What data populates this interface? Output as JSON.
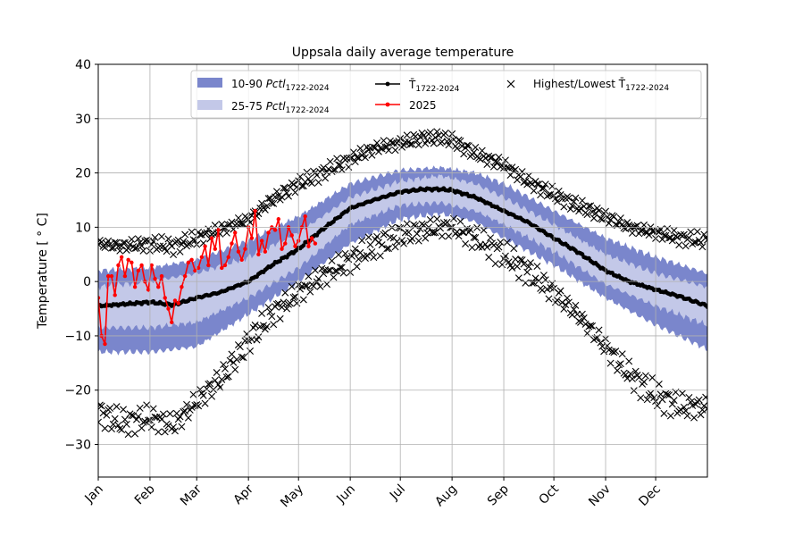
{
  "chart_data": {
    "type": "line",
    "title": "Uppsala daily average temperature",
    "ylabel": "Temperature [$^\\circ$C]",
    "ylabel_display": "Temperature [ ° C]",
    "xlabel": "",
    "xlim": [
      1,
      366
    ],
    "ylim": [
      -36,
      40
    ],
    "yticks": [
      -30,
      -20,
      -10,
      0,
      10,
      20,
      30,
      40
    ],
    "xticks": [
      {
        "label": "Jan",
        "day": 1
      },
      {
        "label": "Feb",
        "day": 32
      },
      {
        "label": "Mar",
        "day": 60
      },
      {
        "label": "Apr",
        "day": 91
      },
      {
        "label": "May",
        "day": 121
      },
      {
        "label": "Jun",
        "day": 152
      },
      {
        "label": "Jul",
        "day": 182
      },
      {
        "label": "Aug",
        "day": 213
      },
      {
        "label": "Sep",
        "day": 244
      },
      {
        "label": "Oct",
        "day": 274
      },
      {
        "label": "Nov",
        "day": 305
      },
      {
        "label": "Dec",
        "day": 335
      }
    ],
    "grid": true,
    "legend_placement": "top-right",
    "legend": [
      {
        "key": "p1090",
        "label": "10-90",
        "sub": "1722-2024",
        "math": "Pctl",
        "color": "#7a86cc",
        "kind": "patch"
      },
      {
        "key": "p2575",
        "label": "25-75",
        "sub": "1722-2024",
        "math": "Pctl",
        "color": "#c3c8e8",
        "kind": "patch"
      },
      {
        "key": "mean",
        "label": "T̄",
        "sub": "1722-2024",
        "color": "#000000",
        "kind": "line-dot"
      },
      {
        "key": "y2025",
        "label": "2025",
        "color": "#ff0000",
        "kind": "line-dot"
      },
      {
        "key": "extremes",
        "label": "Highest/Lowest T̄",
        "sub": "1722-2024",
        "color": "#000000",
        "kind": "x-marker"
      }
    ],
    "series": {
      "mean": {
        "x": [
          1,
          15,
          32,
          46,
          60,
          74,
          91,
          105,
          121,
          135,
          152,
          166,
          182,
          196,
          206,
          213,
          227,
          244,
          258,
          274,
          288,
          305,
          319,
          335,
          350,
          366
        ],
        "y": [
          -4.5,
          -4.2,
          -3.8,
          -4.3,
          -3.0,
          -2.0,
          0.0,
          3.0,
          6.0,
          9.5,
          13.5,
          15.0,
          16.5,
          17.0,
          17.0,
          16.8,
          15.5,
          13.0,
          11.0,
          8.0,
          5.5,
          2.0,
          0.0,
          -1.5,
          -2.8,
          -4.5
        ]
      },
      "p25": {
        "x": [
          1,
          32,
          60,
          91,
          121,
          152,
          182,
          206,
          227,
          244,
          274,
          305,
          335,
          366
        ],
        "y": [
          -8.5,
          -8.5,
          -7.5,
          -3.0,
          2.5,
          10.5,
          14.0,
          14.5,
          13.0,
          10.5,
          5.5,
          -0.5,
          -4.5,
          -8.0
        ]
      },
      "p75": {
        "x": [
          1,
          32,
          60,
          91,
          121,
          152,
          182,
          206,
          227,
          244,
          274,
          305,
          335,
          366
        ],
        "y": [
          -1.0,
          0.0,
          1.5,
          4.5,
          9.0,
          15.5,
          18.5,
          19.5,
          18.0,
          15.5,
          10.5,
          5.0,
          1.5,
          -1.0
        ]
      },
      "p10": {
        "x": [
          1,
          32,
          60,
          91,
          121,
          152,
          182,
          206,
          227,
          244,
          274,
          305,
          335,
          366
        ],
        "y": [
          -13.0,
          -13.0,
          -12.0,
          -6.0,
          0.0,
          7.0,
          11.5,
          12.5,
          11.0,
          8.0,
          3.0,
          -3.0,
          -8.0,
          -12.5
        ]
      },
      "p90": {
        "x": [
          1,
          32,
          60,
          91,
          121,
          152,
          182,
          206,
          227,
          244,
          274,
          305,
          335,
          366
        ],
        "y": [
          2.0,
          2.5,
          4.0,
          7.5,
          12.0,
          18.0,
          20.5,
          21.0,
          20.0,
          18.0,
          13.0,
          8.0,
          4.5,
          1.5
        ]
      },
      "highest": {
        "x": [
          1,
          15,
          32,
          46,
          60,
          74,
          91,
          105,
          121,
          135,
          152,
          166,
          182,
          196,
          206,
          213,
          227,
          244,
          258,
          274,
          288,
          305,
          319,
          335,
          350,
          366
        ],
        "y": [
          7.0,
          6.5,
          7.0,
          6.5,
          8.0,
          9.5,
          11.5,
          15.0,
          18.0,
          20.0,
          22.5,
          24.5,
          25.5,
          26.5,
          26.5,
          26.0,
          23.5,
          21.5,
          18.5,
          16.0,
          14.0,
          12.0,
          10.0,
          9.0,
          8.0,
          7.5
        ]
      },
      "lowest": {
        "x": [
          1,
          15,
          32,
          46,
          60,
          74,
          91,
          105,
          121,
          135,
          152,
          166,
          182,
          196,
          206,
          213,
          227,
          244,
          258,
          274,
          288,
          305,
          319,
          335,
          350,
          366
        ],
        "y": [
          -24.0,
          -26.0,
          -25.0,
          -26.5,
          -22.0,
          -18.0,
          -11.0,
          -6.0,
          -2.0,
          1.0,
          4.0,
          6.5,
          8.5,
          9.5,
          10.0,
          10.0,
          8.0,
          5.0,
          2.0,
          -2.0,
          -6.0,
          -12.0,
          -17.0,
          -21.0,
          -23.0,
          -23.0
        ]
      },
      "y2025": {
        "x": [
          1,
          3,
          5,
          7,
          9,
          11,
          13,
          15,
          17,
          19,
          21,
          23,
          25,
          27,
          29,
          31,
          33,
          35,
          37,
          39,
          41,
          43,
          45,
          47,
          49,
          51,
          53,
          55,
          57,
          59,
          61,
          63,
          65,
          67,
          69,
          71,
          73,
          75,
          77,
          79,
          81,
          83,
          85,
          87,
          89,
          91,
          93,
          95,
          97,
          99,
          101,
          103,
          105,
          107,
          109,
          111,
          113,
          115,
          117,
          119,
          121,
          123,
          125,
          127,
          129,
          131
        ],
        "y": [
          -3.0,
          -10.0,
          -11.5,
          1.0,
          1.0,
          -2.5,
          3.0,
          4.5,
          1.0,
          4.0,
          3.5,
          -1.0,
          2.0,
          3.0,
          0.0,
          -1.5,
          3.0,
          0.5,
          -1.0,
          1.0,
          -3.0,
          -5.0,
          -7.5,
          -3.5,
          -4.0,
          -1.0,
          1.0,
          3.5,
          4.0,
          2.0,
          2.5,
          4.5,
          6.5,
          3.0,
          8.0,
          6.0,
          9.5,
          2.5,
          3.0,
          4.5,
          7.0,
          9.0,
          5.5,
          4.0,
          6.0,
          10.0,
          8.0,
          13.0,
          5.0,
          7.5,
          5.5,
          9.0,
          10.0,
          9.5,
          11.5,
          6.0,
          7.0,
          10.0,
          8.5,
          6.5,
          7.5,
          10.0,
          12.0,
          6.5,
          8.0,
          7.0
        ]
      }
    }
  }
}
